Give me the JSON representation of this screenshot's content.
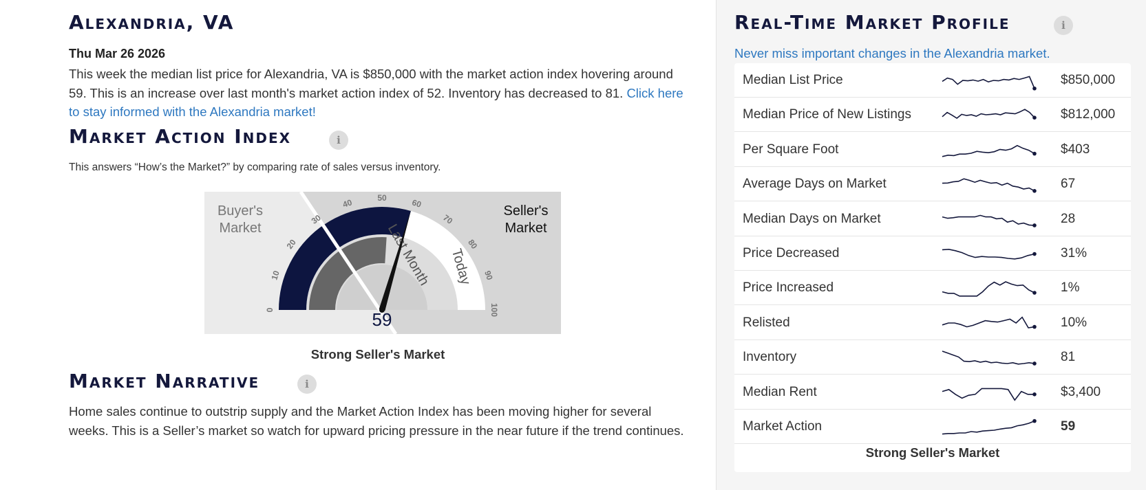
{
  "main": {
    "city_title": "Alexandria, VA",
    "date": "Thu Mar 26 2026",
    "summary_text": "This week the median list price for Alexandria, VA is $850,000 with the market action index hovering around 59. This is an increase over last month's market action index of 52. Inventory has decreased to 81.",
    "summary_link": "Click here to stay informed with the Alexandria market!",
    "mai_title": "Market Action Index",
    "mai_subtitle": "This answers “How’s the Market?” by comparing rate of sales versus inventory.",
    "info_icon_glyph": "i",
    "gauge": {
      "buyers_label": [
        "Buyer's",
        "Market"
      ],
      "sellers_label": [
        "Seller's",
        "Market"
      ],
      "ticks": [
        "0",
        "10",
        "20",
        "30",
        "40",
        "50",
        "60",
        "70",
        "80",
        "90",
        "100"
      ],
      "last_month_label": "Last Month",
      "today_label": "Today",
      "today_value": 59,
      "last_month_value": 52,
      "value_text": "59",
      "colors": {
        "today": "#0d1540",
        "last_month": "#666666",
        "buyers_bg": "#ebebeb",
        "sellers_bg": "#d6d6d6"
      }
    },
    "gauge_caption": "Strong Seller's Market",
    "narrative_title": "Market Narrative",
    "narrative_text": "Home sales continue to outstrip supply and the Market Action Index has been moving higher for several weeks. This is a Seller’s market so watch for upward pricing pressure in the near future if the trend continues."
  },
  "side": {
    "title": "Real-Time Market Profile",
    "link": "Never miss important changes in the Alexandria market.",
    "rows": [
      {
        "label": "Median List Price",
        "value": "$850,000",
        "bold": false,
        "spark": [
          0.45,
          0.62,
          0.55,
          0.3,
          0.5,
          0.48,
          0.52,
          0.46,
          0.55,
          0.42,
          0.5,
          0.48,
          0.55,
          0.52,
          0.6,
          0.55,
          0.62,
          0.7,
          0.08
        ]
      },
      {
        "label": "Median Price of New Listings",
        "value": "$812,000",
        "bold": false,
        "spark": [
          0.4,
          0.62,
          0.48,
          0.32,
          0.52,
          0.46,
          0.5,
          0.42,
          0.55,
          0.5,
          0.52,
          0.55,
          0.5,
          0.6,
          0.58,
          0.55,
          0.65,
          0.78,
          0.62,
          0.35
        ]
      },
      {
        "label": "Per Square Foot",
        "value": "$403",
        "bold": false,
        "spark": [
          0.15,
          0.22,
          0.2,
          0.28,
          0.28,
          0.32,
          0.42,
          0.38,
          0.35,
          0.4,
          0.52,
          0.48,
          0.55,
          0.72,
          0.58,
          0.48,
          0.3
        ]
      },
      {
        "label": "Average Days on Market",
        "value": "67",
        "bold": false,
        "spark": [
          0.55,
          0.56,
          0.62,
          0.65,
          0.78,
          0.7,
          0.6,
          0.7,
          0.62,
          0.55,
          0.58,
          0.45,
          0.55,
          0.4,
          0.35,
          0.25,
          0.3,
          0.15
        ]
      },
      {
        "label": "Median Days on Market",
        "value": "28",
        "bold": false,
        "spark": [
          0.62,
          0.55,
          0.58,
          0.62,
          0.62,
          0.62,
          0.62,
          0.7,
          0.62,
          0.62,
          0.52,
          0.55,
          0.35,
          0.42,
          0.25,
          0.3,
          0.2,
          0.18
        ]
      },
      {
        "label": "Price Decreased",
        "value": "31%",
        "bold": false,
        "spark": [
          0.7,
          0.72,
          0.65,
          0.55,
          0.4,
          0.3,
          0.35,
          0.32,
          0.32,
          0.3,
          0.25,
          0.22,
          0.28,
          0.4,
          0.48
        ]
      },
      {
        "label": "Price Increased",
        "value": "1%",
        "bold": false,
        "spark": [
          0.3,
          0.22,
          0.22,
          0.08,
          0.08,
          0.08,
          0.08,
          0.3,
          0.6,
          0.8,
          0.65,
          0.82,
          0.7,
          0.62,
          0.65,
          0.4,
          0.25
        ]
      },
      {
        "label": "Relisted",
        "value": "10%",
        "bold": false,
        "spark": [
          0.4,
          0.5,
          0.5,
          0.42,
          0.3,
          0.38,
          0.5,
          0.62,
          0.58,
          0.55,
          0.62,
          0.7,
          0.5,
          0.8,
          0.25,
          0.3
        ]
      },
      {
        "label": "Inventory",
        "value": "81",
        "bold": false,
        "spark": [
          0.82,
          0.72,
          0.62,
          0.52,
          0.3,
          0.28,
          0.32,
          0.25,
          0.3,
          0.22,
          0.25,
          0.2,
          0.18,
          0.22,
          0.15,
          0.18,
          0.22,
          0.18
        ]
      },
      {
        "label": "Median Rent",
        "value": "$3,400",
        "bold": false,
        "spark": [
          0.55,
          0.65,
          0.4,
          0.2,
          0.35,
          0.4,
          0.7,
          0.7,
          0.7,
          0.7,
          0.65,
          0.1,
          0.55,
          0.4,
          0.4
        ]
      },
      {
        "label": "Market Action",
        "value": "59",
        "bold": true,
        "spark": [
          0.12,
          0.15,
          0.15,
          0.18,
          0.18,
          0.25,
          0.22,
          0.28,
          0.3,
          0.32,
          0.38,
          0.42,
          0.45,
          0.55,
          0.6,
          0.68,
          0.8
        ]
      }
    ],
    "caption": "Strong Seller's Market",
    "spark_color": "#14183c"
  }
}
